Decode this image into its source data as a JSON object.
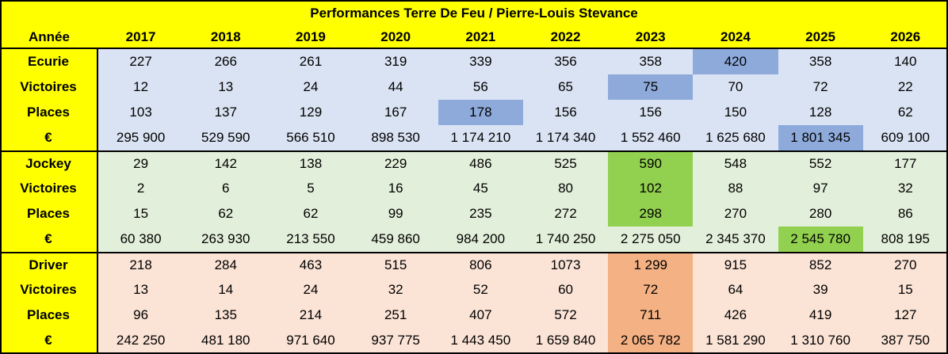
{
  "title": "Performances Terre De Feu / Pierre-Louis Stevance",
  "header": {
    "label": "Année",
    "years": [
      "2017",
      "2018",
      "2019",
      "2020",
      "2021",
      "2022",
      "2023",
      "2024",
      "2025",
      "2026"
    ]
  },
  "sections": [
    {
      "name": "ecurie",
      "rows": [
        {
          "label": "Ecurie",
          "values": [
            "227",
            "266",
            "261",
            "319",
            "339",
            "356",
            "358",
            "420",
            "358",
            "140"
          ],
          "highlight": 7
        },
        {
          "label": "Victoires",
          "values": [
            "12",
            "13",
            "24",
            "44",
            "56",
            "65",
            "75",
            "70",
            "72",
            "22"
          ],
          "highlight": 6
        },
        {
          "label": "Places",
          "values": [
            "103",
            "137",
            "129",
            "167",
            "178",
            "156",
            "156",
            "150",
            "128",
            "62"
          ],
          "highlight": 4
        },
        {
          "label": "€",
          "values": [
            "295 900",
            "529 590",
            "566 510",
            "898 530",
            "1 174 210",
            "1 174 340",
            "1 552 460",
            "1 625 680",
            "1 801 345",
            "609 100"
          ],
          "highlight": 8
        }
      ]
    },
    {
      "name": "jockey",
      "rows": [
        {
          "label": "Jockey",
          "values": [
            "29",
            "142",
            "138",
            "229",
            "486",
            "525",
            "590",
            "548",
            "552",
            "177"
          ],
          "highlight": 6
        },
        {
          "label": "Victoires",
          "values": [
            "2",
            "6",
            "5",
            "16",
            "45",
            "80",
            "102",
            "88",
            "97",
            "32"
          ],
          "highlight": 6
        },
        {
          "label": "Places",
          "values": [
            "15",
            "62",
            "62",
            "99",
            "235",
            "272",
            "298",
            "270",
            "280",
            "86"
          ],
          "highlight": 6
        },
        {
          "label": "€",
          "values": [
            "60 380",
            "263 930",
            "213 550",
            "459 860",
            "984 200",
            "1 740 250",
            "2 275 050",
            "2 345 370",
            "2 545 780",
            "808 195"
          ],
          "highlight": 8
        }
      ]
    },
    {
      "name": "driver",
      "rows": [
        {
          "label": "Driver",
          "values": [
            "218",
            "284",
            "463",
            "515",
            "806",
            "1073",
            "1 299",
            "915",
            "852",
            "270"
          ],
          "highlight": 6
        },
        {
          "label": "Victoires",
          "values": [
            "13",
            "14",
            "24",
            "32",
            "52",
            "60",
            "72",
            "64",
            "39",
            "15"
          ],
          "highlight": 6
        },
        {
          "label": "Places",
          "values": [
            "96",
            "135",
            "214",
            "251",
            "407",
            "572",
            "711",
            "426",
            "419",
            "127"
          ],
          "highlight": 6
        },
        {
          "label": "€",
          "values": [
            "242 250",
            "481 180",
            "971 640",
            "937 775",
            "1 443 450",
            "1 659 840",
            "2 065 782",
            "1 581 290",
            "1 310 760",
            "387 750"
          ],
          "highlight": 6
        }
      ]
    }
  ],
  "colors": {
    "header": "#ffff00",
    "ecurie_bg": "#dae3f3",
    "ecurie_hl": "#8eaadb",
    "jockey_bg": "#e2efda",
    "jockey_hl": "#92d050",
    "driver_bg": "#fbe3d6",
    "driver_hl": "#f4b183"
  }
}
